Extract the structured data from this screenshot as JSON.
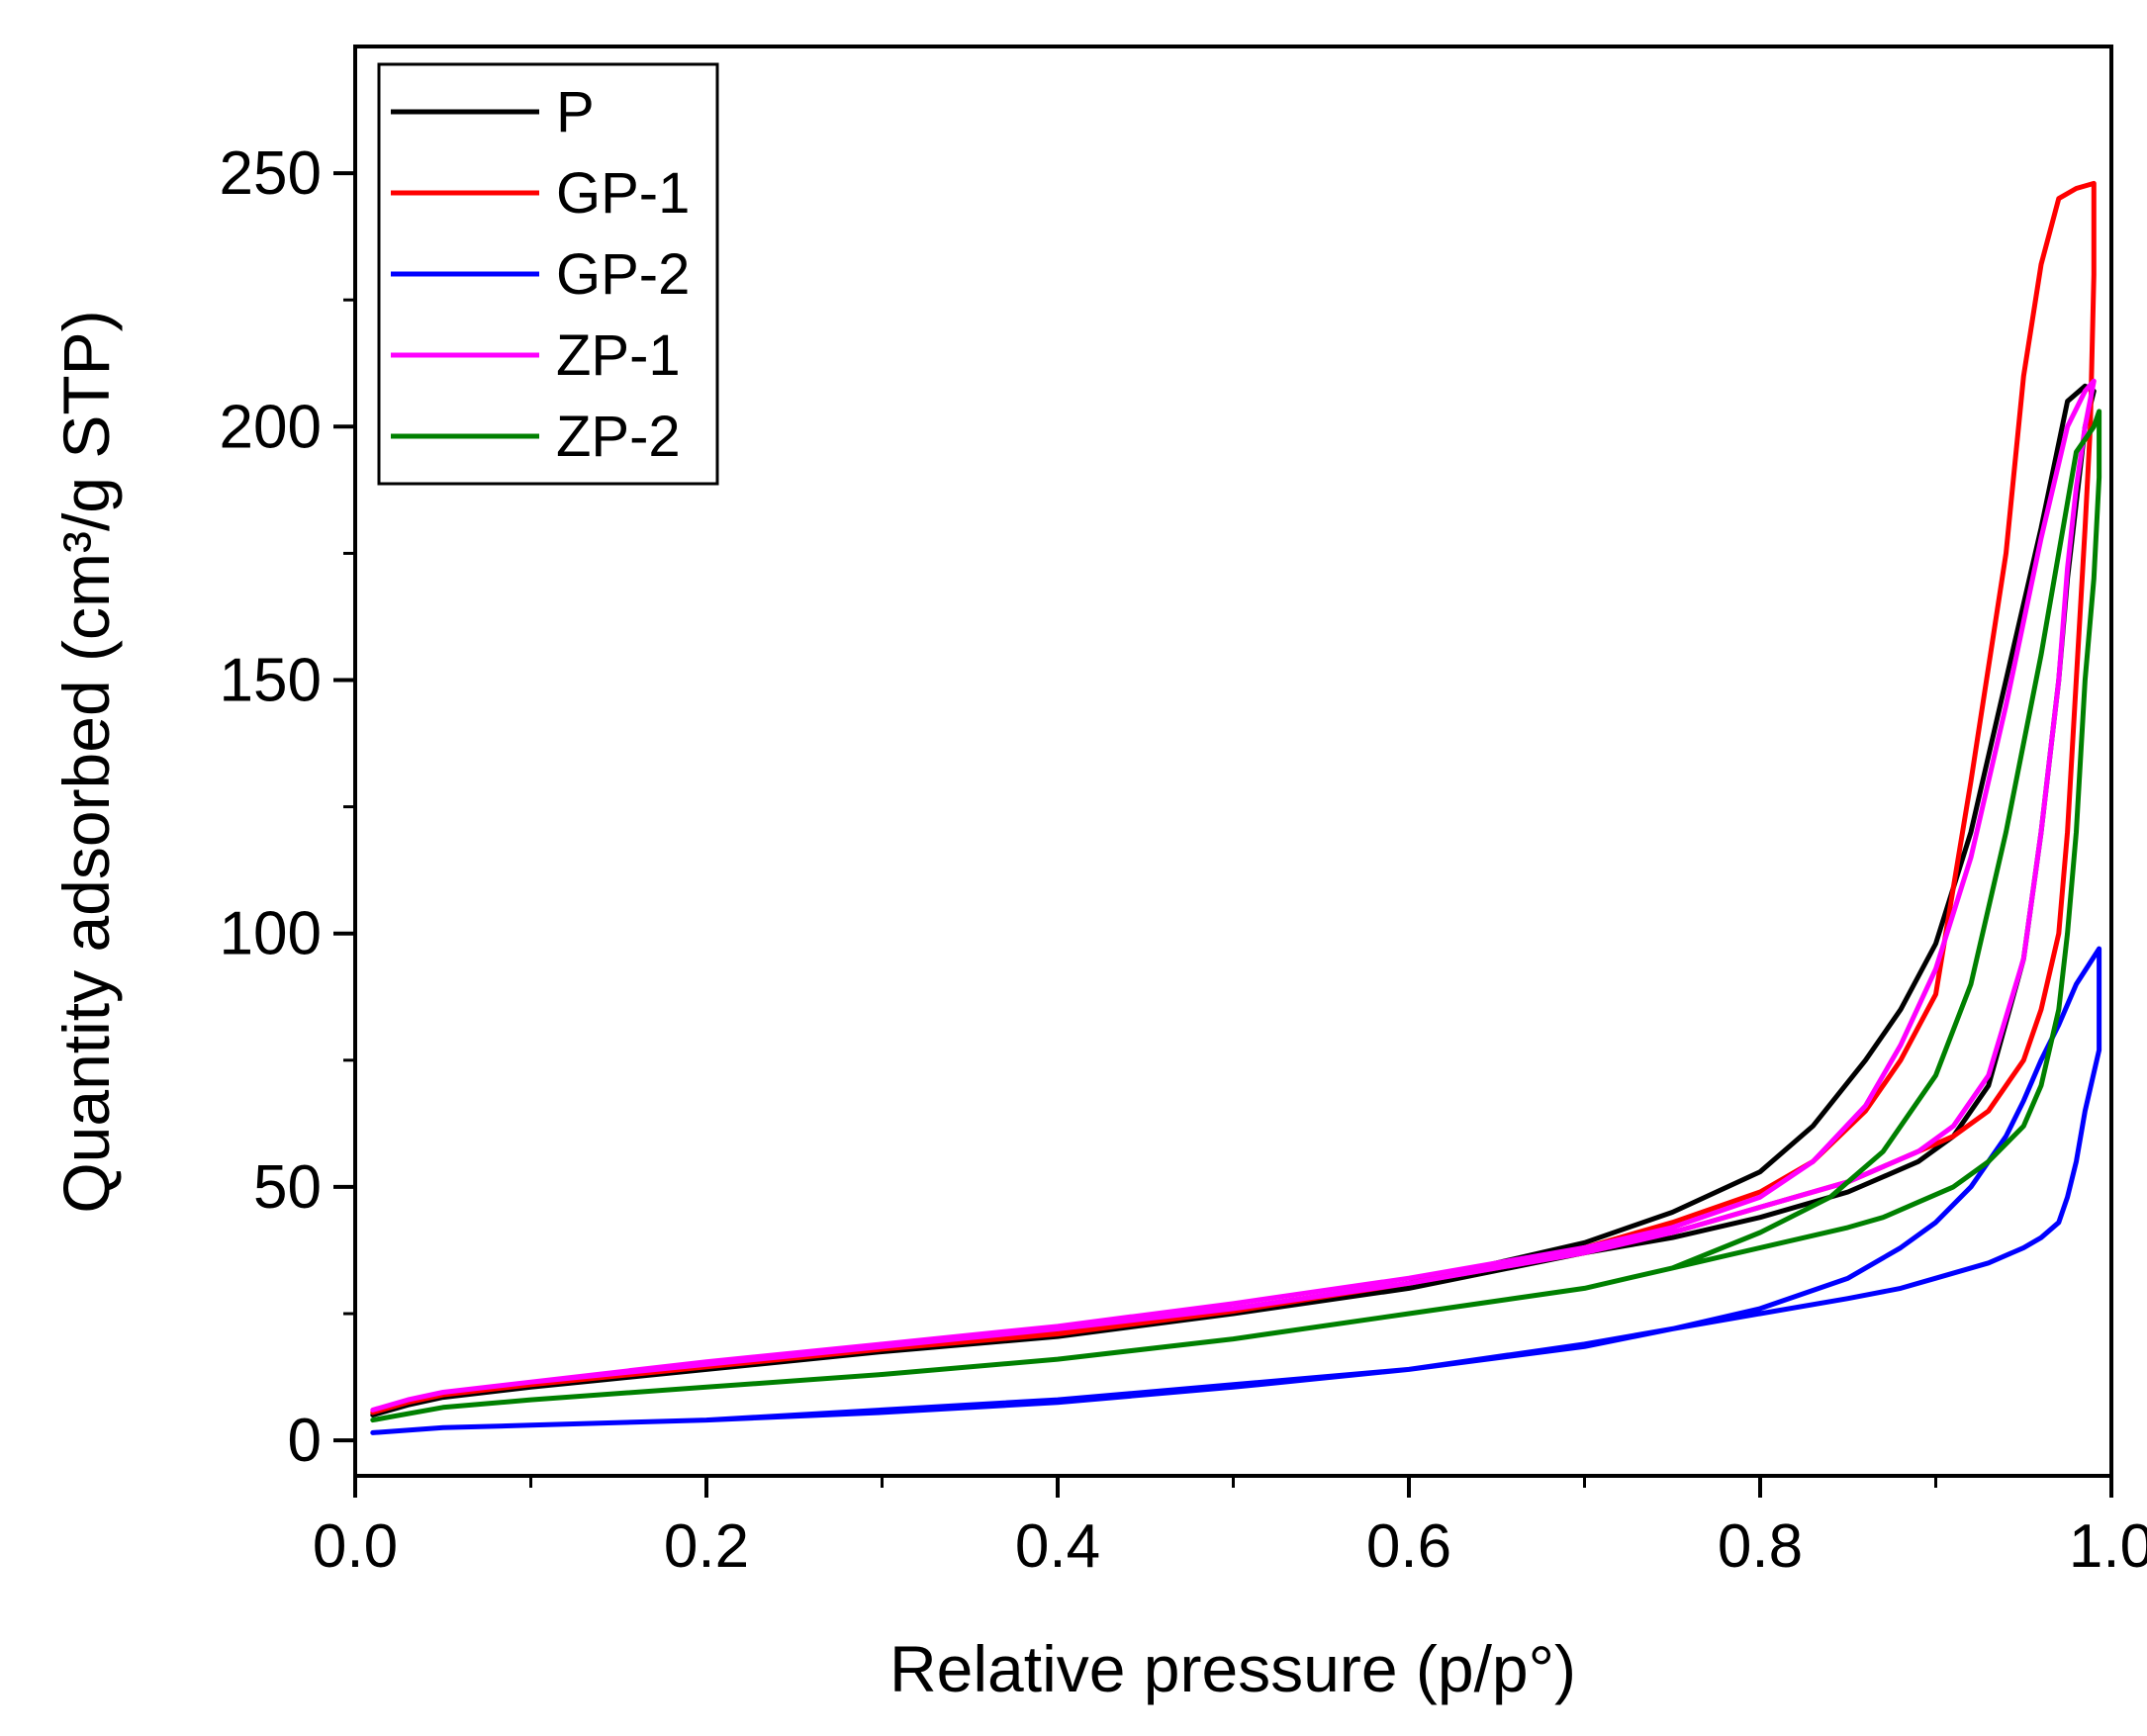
{
  "chart_data": {
    "type": "line",
    "title": "",
    "xlabel": "Relative pressure (p/p°)",
    "ylabel": "Quantity adsorbed (cm³/g STP)",
    "xlim": [
      0.0,
      1.0
    ],
    "ylim": [
      -7,
      275
    ],
    "xticks": [
      0.0,
      0.2,
      0.4,
      0.6,
      0.8,
      1.0
    ],
    "xtick_labels": [
      "0.0",
      "0.2",
      "0.4",
      "0.6",
      "0.8",
      "1.0"
    ],
    "yticks": [
      0,
      50,
      100,
      150,
      200,
      250
    ],
    "ytick_labels": [
      "0",
      "50",
      "100",
      "150",
      "200",
      "250"
    ],
    "legend_position": "top-left",
    "series": [
      {
        "name": "P",
        "color": "#000000",
        "x": [
          0.01,
          0.03,
          0.05,
          0.1,
          0.2,
          0.3,
          0.4,
          0.5,
          0.6,
          0.7,
          0.75,
          0.8,
          0.83,
          0.86,
          0.88,
          0.9,
          0.92,
          0.94,
          0.96,
          0.975,
          0.985,
          0.99,
          0.985,
          0.98,
          0.975,
          0.97,
          0.96,
          0.95,
          0.93,
          0.91,
          0.89,
          0.87,
          0.85,
          0.8,
          0.75,
          0.7,
          0.6,
          0.5,
          0.4,
          0.3,
          0.2,
          0.1,
          0.05,
          0.03,
          0.01
        ],
        "y": [
          5,
          7,
          8.5,
          10.5,
          14,
          17.5,
          20.5,
          25,
          31,
          39,
          45,
          53,
          62,
          75,
          85,
          98,
          120,
          150,
          180,
          205,
          208,
          207,
          200,
          185,
          170,
          150,
          120,
          95,
          70,
          60,
          55,
          52,
          49,
          44,
          40,
          37,
          30,
          25,
          21,
          17.5,
          14,
          10.5,
          8.5,
          7,
          5
        ]
      },
      {
        "name": "GP-1",
        "color": "#ff0000",
        "x": [
          0.01,
          0.03,
          0.05,
          0.1,
          0.2,
          0.3,
          0.4,
          0.5,
          0.6,
          0.7,
          0.75,
          0.8,
          0.83,
          0.86,
          0.88,
          0.9,
          0.92,
          0.94,
          0.95,
          0.96,
          0.97,
          0.98,
          0.99,
          0.99,
          0.988,
          0.985,
          0.98,
          0.975,
          0.97,
          0.96,
          0.95,
          0.93,
          0.91,
          0.89,
          0.87,
          0.85,
          0.8,
          0.75,
          0.7,
          0.6,
          0.5,
          0.4,
          0.3,
          0.2,
          0.1,
          0.05,
          0.03,
          0.01
        ],
        "y": [
          5.5,
          7.5,
          9,
          11,
          14.5,
          18,
          21,
          25.5,
          31,
          38,
          43,
          49,
          55,
          65,
          75,
          88,
          130,
          175,
          210,
          232,
          245,
          247,
          248,
          230,
          200,
          180,
          150,
          120,
          100,
          85,
          75,
          65,
          60,
          57,
          54,
          51,
          46,
          41,
          37,
          31,
          26,
          22,
          18,
          14.5,
          11,
          9,
          7.5,
          5.5
        ]
      },
      {
        "name": "GP-2",
        "color": "#0000ff",
        "x": [
          0.01,
          0.05,
          0.1,
          0.2,
          0.3,
          0.4,
          0.5,
          0.6,
          0.7,
          0.75,
          0.8,
          0.85,
          0.88,
          0.9,
          0.92,
          0.94,
          0.95,
          0.96,
          0.97,
          0.98,
          0.993,
          0.993,
          0.985,
          0.98,
          0.975,
          0.97,
          0.96,
          0.95,
          0.93,
          0.9,
          0.88,
          0.85,
          0.8,
          0.75,
          0.7,
          0.6,
          0.5,
          0.4,
          0.3,
          0.2,
          0.1,
          0.05,
          0.01
        ],
        "y": [
          1.5,
          2.5,
          3,
          4,
          5.5,
          7.5,
          10.5,
          14,
          18.5,
          22,
          26,
          32,
          38,
          43,
          50,
          60,
          67,
          75,
          82,
          90,
          97,
          77,
          65,
          55,
          48,
          43,
          40,
          38,
          35,
          32,
          30,
          28,
          25,
          22,
          19,
          14,
          11,
          8,
          6,
          4,
          3,
          2.5,
          1.5
        ]
      },
      {
        "name": "ZP-1",
        "color": "#ff00ff",
        "x": [
          0.01,
          0.03,
          0.05,
          0.1,
          0.2,
          0.3,
          0.4,
          0.5,
          0.6,
          0.7,
          0.75,
          0.8,
          0.83,
          0.86,
          0.88,
          0.9,
          0.92,
          0.94,
          0.96,
          0.975,
          0.985,
          0.99,
          0.985,
          0.98,
          0.975,
          0.97,
          0.96,
          0.95,
          0.93,
          0.91,
          0.89,
          0.87,
          0.85,
          0.8,
          0.75,
          0.7,
          0.6,
          0.5,
          0.4,
          0.3,
          0.2,
          0.1,
          0.05,
          0.03,
          0.01
        ],
        "y": [
          6,
          8,
          9.5,
          11.5,
          15.5,
          19,
          22.5,
          27,
          32,
          38,
          42,
          48,
          55,
          66,
          78,
          93,
          115,
          145,
          178,
          200,
          207,
          209,
          200,
          188,
          172,
          150,
          120,
          95,
          72,
          62,
          57,
          54,
          51,
          46,
          41,
          37,
          31,
          26,
          22,
          18.5,
          15,
          11.5,
          9.5,
          8,
          6
        ]
      },
      {
        "name": "ZP-2",
        "color": "#008000",
        "x": [
          0.01,
          0.05,
          0.1,
          0.2,
          0.3,
          0.4,
          0.5,
          0.6,
          0.7,
          0.75,
          0.8,
          0.84,
          0.87,
          0.9,
          0.92,
          0.94,
          0.96,
          0.98,
          0.99,
          0.993,
          0.993,
          0.99,
          0.985,
          0.98,
          0.975,
          0.97,
          0.96,
          0.95,
          0.93,
          0.91,
          0.89,
          0.87,
          0.85,
          0.8,
          0.75,
          0.7,
          0.6,
          0.5,
          0.4,
          0.3,
          0.2,
          0.1,
          0.05,
          0.01
        ],
        "y": [
          4,
          6.5,
          8,
          10.5,
          13,
          16,
          20,
          25,
          30,
          34,
          41,
          48,
          57,
          72,
          90,
          120,
          155,
          195,
          200,
          203,
          190,
          170,
          150,
          120,
          100,
          85,
          70,
          62,
          55,
          50,
          47,
          44,
          42,
          38,
          34,
          30,
          25,
          20,
          16,
          13,
          10.5,
          8,
          6.5,
          4
        ]
      }
    ]
  }
}
